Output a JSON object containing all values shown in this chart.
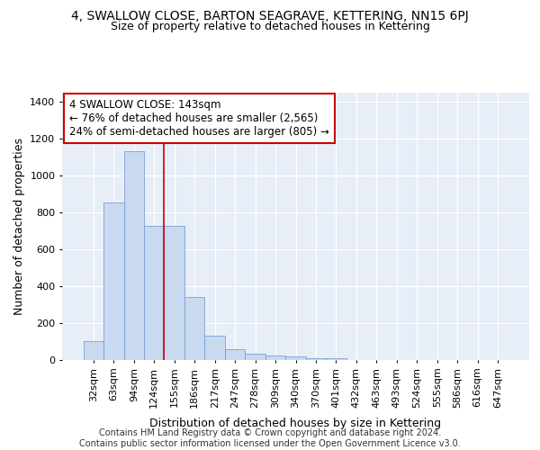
{
  "title": "4, SWALLOW CLOSE, BARTON SEAGRAVE, KETTERING, NN15 6PJ",
  "subtitle": "Size of property relative to detached houses in Kettering",
  "xlabel": "Distribution of detached houses by size in Kettering",
  "ylabel": "Number of detached properties",
  "categories": [
    "32sqm",
    "63sqm",
    "94sqm",
    "124sqm",
    "155sqm",
    "186sqm",
    "217sqm",
    "247sqm",
    "278sqm",
    "309sqm",
    "340sqm",
    "370sqm",
    "401sqm",
    "432sqm",
    "463sqm",
    "493sqm",
    "524sqm",
    "555sqm",
    "586sqm",
    "616sqm",
    "647sqm"
  ],
  "values": [
    103,
    855,
    1130,
    725,
    725,
    340,
    130,
    60,
    35,
    22,
    18,
    12,
    12,
    0,
    0,
    0,
    0,
    0,
    0,
    0,
    0
  ],
  "bar_color": "#c9d9f0",
  "bar_edge_color": "#7a9fd4",
  "red_line_x": 3.5,
  "annotation_text": "4 SWALLOW CLOSE: 143sqm\n← 76% of detached houses are smaller (2,565)\n24% of semi-detached houses are larger (805) →",
  "annotation_box_color": "#ffffff",
  "annotation_box_edge": "#cc0000",
  "red_line_color": "#cc0000",
  "ylim": [
    0,
    1450
  ],
  "yticks": [
    0,
    200,
    400,
    600,
    800,
    1000,
    1200,
    1400
  ],
  "footer": "Contains HM Land Registry data © Crown copyright and database right 2024.\nContains public sector information licensed under the Open Government Licence v3.0.",
  "bg_color": "#e8eef8",
  "grid_color": "#ffffff",
  "title_fontsize": 10,
  "subtitle_fontsize": 9,
  "axis_label_fontsize": 9,
  "tick_fontsize": 8,
  "footer_fontsize": 7
}
